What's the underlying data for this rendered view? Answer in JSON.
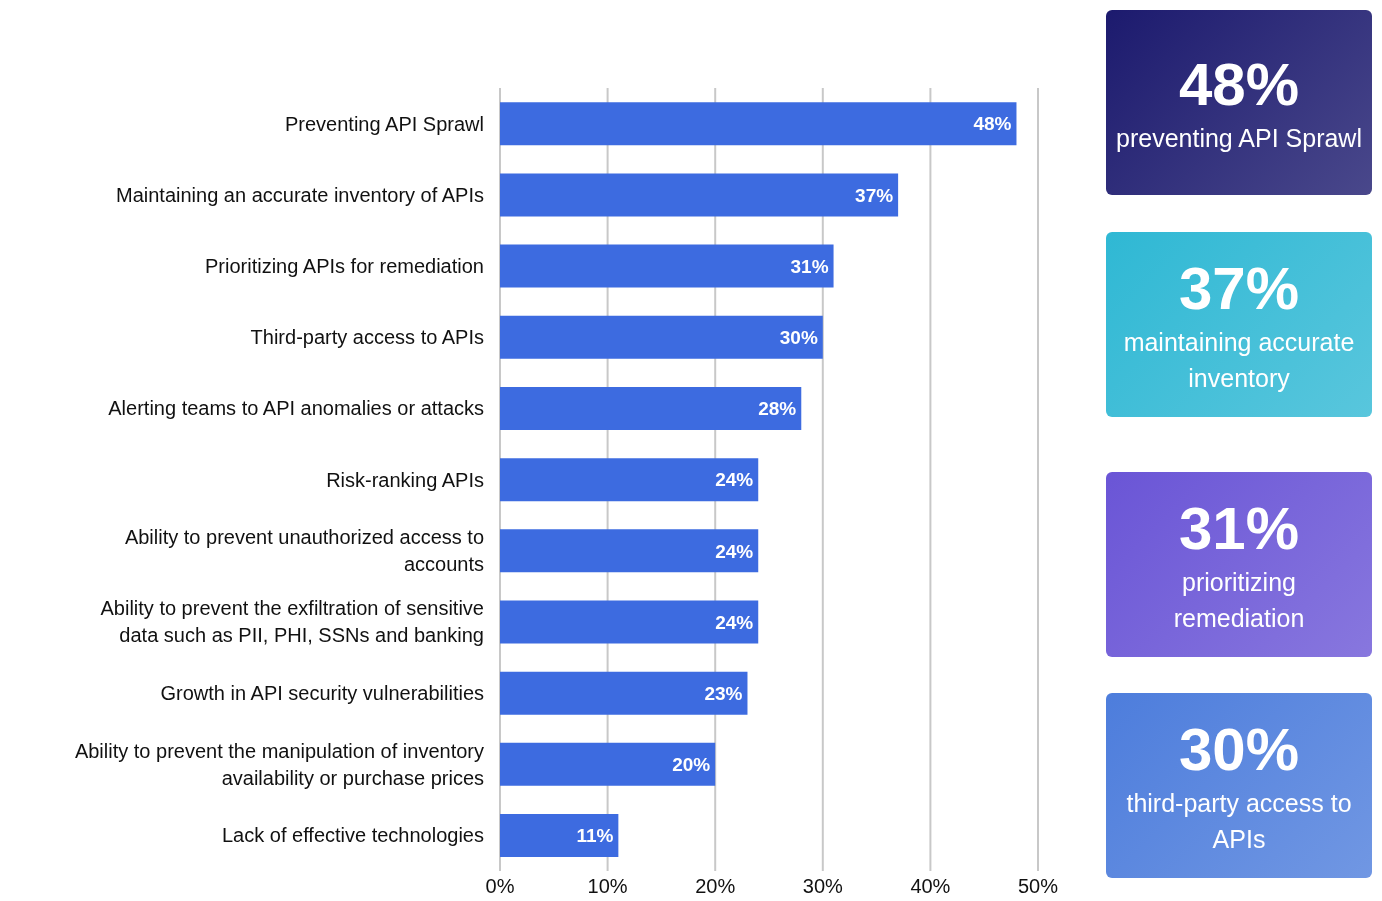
{
  "chart_data": [
    {
      "type": "bar",
      "orientation": "horizontal",
      "categories": [
        "Preventing API Sprawl",
        "Maintaining an accurate inventory of APIs",
        "Prioritizing APIs for remediation",
        "Third-party access to APIs",
        "Alerting teams to API anomalies or attacks",
        "Risk-ranking APIs",
        "Ability to prevent unauthorized access to accounts",
        "Ability to prevent the exfiltration of sensitive data such as PII, PHI, SSNs and banking",
        "Growth in API security vulnerabilities",
        "Ability to prevent the manipulation of inventory availability or purchase prices",
        "Lack of effective technologies"
      ],
      "values": [
        48,
        37,
        31,
        30,
        28,
        24,
        24,
        24,
        23,
        20,
        11
      ],
      "value_labels": [
        "48%",
        "37%",
        "31%",
        "30%",
        "28%",
        "24%",
        "24%",
        "24%",
        "23%",
        "20%",
        "11%"
      ],
      "color": "#3d6be0",
      "xlim": [
        0,
        50
      ],
      "xticks": [
        {
          "value": 0,
          "label": "0%"
        },
        {
          "value": 10,
          "label": "10%"
        },
        {
          "value": 20,
          "label": "20%"
        },
        {
          "value": 30,
          "label": "30%"
        },
        {
          "value": 40,
          "label": "40%"
        },
        {
          "value": 50,
          "label": "50%"
        }
      ],
      "grid": "x"
    },
    {
      "type": "other",
      "categories": [
        "preventing API Sprawl",
        "maintaining accurate inventory",
        "prioritizing remediation",
        "third-party access to APIs"
      ],
      "value_labels": [
        "48%",
        "37%",
        "31%",
        "30%"
      ],
      "colors": [
        "#1c1a6e",
        "#2fb8d4",
        "#6a55d6",
        "#4d7ddc"
      ]
    }
  ]
}
